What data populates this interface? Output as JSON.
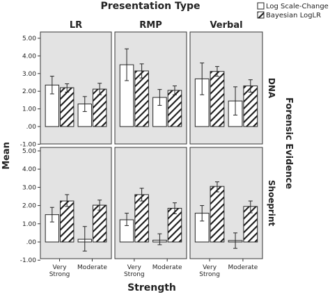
{
  "chart_data": {
    "type": "bar",
    "title": "Presentation Type",
    "xlabel": "Strength",
    "ylabel": "Mean",
    "row_label": "Forensic Evidence",
    "ylim": [
      -1.0,
      5.0
    ],
    "yticks": [
      "5.00",
      "4.00",
      "3.00",
      "2.00",
      "1.00",
      ".00",
      "-1.00"
    ],
    "grid": false,
    "legend_position": "top-right",
    "legend": [
      {
        "name": "Log Scale-Change",
        "pattern": "solid-white"
      },
      {
        "name": "Bayesian LogLR",
        "pattern": "diagonal-hatch"
      }
    ],
    "columns": [
      "LR",
      "RMP",
      "Verbal"
    ],
    "rows": [
      "DNA",
      "Shoeprint"
    ],
    "categories": [
      {
        "line1": "Very",
        "line2": "Strong"
      },
      {
        "line1": "Moderate",
        "line2": ""
      }
    ],
    "panels": [
      {
        "row": "DNA",
        "column": "LR",
        "series": [
          {
            "name": "Log Scale-Change",
            "values": [
              2.35,
              1.28
            ],
            "errors": [
              [
                1.85,
                2.85
              ],
              [
                0.85,
                1.7
              ]
            ]
          },
          {
            "name": "Bayesian LogLR",
            "values": [
              2.2,
              2.12
            ],
            "errors": [
              [
                1.95,
                2.42
              ],
              [
                1.8,
                2.45
              ]
            ]
          }
        ]
      },
      {
        "row": "DNA",
        "column": "RMP",
        "series": [
          {
            "name": "Log Scale-Change",
            "values": [
              3.5,
              1.65
            ],
            "errors": [
              [
                2.6,
                4.4
              ],
              [
                1.2,
                2.1
              ]
            ]
          },
          {
            "name": "Bayesian LogLR",
            "values": [
              3.15,
              2.05
            ],
            "errors": [
              [
                2.75,
                3.55
              ],
              [
                1.8,
                2.3
              ]
            ]
          }
        ]
      },
      {
        "row": "DNA",
        "column": "Verbal",
        "series": [
          {
            "name": "Log Scale-Change",
            "values": [
              2.7,
              1.45
            ],
            "errors": [
              [
                1.8,
                3.6
              ],
              [
                0.65,
                2.25
              ]
            ]
          },
          {
            "name": "Bayesian LogLR",
            "values": [
              3.12,
              2.3
            ],
            "errors": [
              [
                2.85,
                3.4
              ],
              [
                1.95,
                2.65
              ]
            ]
          }
        ]
      },
      {
        "row": "Shoeprint",
        "column": "LR",
        "series": [
          {
            "name": "Log Scale-Change",
            "values": [
              1.5,
              0.15
            ],
            "errors": [
              [
                1.1,
                1.9
              ],
              [
                -0.5,
                0.85
              ]
            ]
          },
          {
            "name": "Bayesian LogLR",
            "values": [
              2.25,
              2.02
            ],
            "errors": [
              [
                1.95,
                2.6
              ],
              [
                1.75,
                2.3
              ]
            ]
          }
        ]
      },
      {
        "row": "Shoeprint",
        "column": "RMP",
        "series": [
          {
            "name": "Log Scale-Change",
            "values": [
              1.22,
              0.1
            ],
            "errors": [
              [
                0.9,
                1.58
              ],
              [
                -0.15,
                0.45
              ]
            ]
          },
          {
            "name": "Bayesian LogLR",
            "values": [
              2.6,
              1.85
            ],
            "errors": [
              [
                2.25,
                2.95
              ],
              [
                1.55,
                2.15
              ]
            ]
          }
        ]
      },
      {
        "row": "Shoeprint",
        "column": "Verbal",
        "series": [
          {
            "name": "Log Scale-Change",
            "values": [
              1.58,
              0.08
            ],
            "errors": [
              [
                1.15,
                2.0
              ],
              [
                -0.35,
                0.5
              ]
            ]
          },
          {
            "name": "Bayesian LogLR",
            "values": [
              3.05,
              1.95
            ],
            "errors": [
              [
                2.75,
                3.3
              ],
              [
                1.6,
                2.25
              ]
            ]
          }
        ]
      }
    ]
  }
}
